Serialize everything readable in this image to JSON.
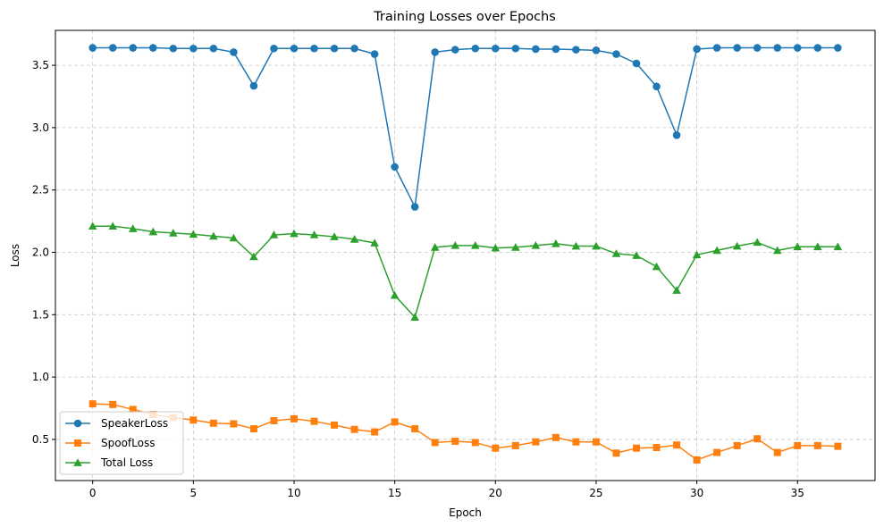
{
  "chart_data": {
    "type": "line",
    "title": "Training Losses over Epochs",
    "xlabel": "Epoch",
    "ylabel": "Loss",
    "xlim": [
      -1.85,
      38.85
    ],
    "ylim": [
      0.17,
      3.78
    ],
    "xticks": [
      0,
      5,
      10,
      15,
      20,
      25,
      30,
      35
    ],
    "xtick_labels": [
      "0",
      "5",
      "10",
      "15",
      "20",
      "25",
      "30",
      "35"
    ],
    "yticks": [
      0.5,
      1.0,
      1.5,
      2.0,
      2.5,
      3.0,
      3.5
    ],
    "ytick_labels": [
      "0.5",
      "1.0",
      "1.5",
      "2.0",
      "2.5",
      "3.0",
      "3.5"
    ],
    "grid": true,
    "legend_position": "lower-left",
    "x": [
      0,
      1,
      2,
      3,
      4,
      5,
      6,
      7,
      8,
      9,
      10,
      11,
      12,
      13,
      14,
      15,
      16,
      17,
      18,
      19,
      20,
      21,
      22,
      23,
      24,
      25,
      26,
      27,
      28,
      29,
      30,
      31,
      32,
      33,
      34,
      35,
      36,
      37
    ],
    "series": [
      {
        "name": "SpeakerLoss",
        "color": "#1f77b4",
        "marker": "circle",
        "values": [
          3.64,
          3.64,
          3.64,
          3.64,
          3.635,
          3.635,
          3.635,
          3.605,
          3.335,
          3.635,
          3.635,
          3.635,
          3.635,
          3.635,
          3.59,
          2.685,
          2.365,
          3.605,
          3.625,
          3.635,
          3.635,
          3.635,
          3.63,
          3.63,
          3.625,
          3.62,
          3.59,
          3.515,
          3.33,
          2.94,
          3.63,
          3.64,
          3.64,
          3.64,
          3.64,
          3.64,
          3.64,
          3.64
        ]
      },
      {
        "name": "SpoofLoss",
        "color": "#ff7f0e",
        "marker": "square",
        "values": [
          0.785,
          0.78,
          0.74,
          0.7,
          0.675,
          0.655,
          0.63,
          0.625,
          0.585,
          0.65,
          0.665,
          0.645,
          0.615,
          0.58,
          0.56,
          0.64,
          0.585,
          0.475,
          0.485,
          0.475,
          0.43,
          0.45,
          0.48,
          0.515,
          0.48,
          0.48,
          0.39,
          0.43,
          0.435,
          0.455,
          0.335,
          0.395,
          0.45,
          0.505,
          0.395,
          0.45,
          0.45,
          0.445
        ]
      },
      {
        "name": "Total Loss",
        "color": "#2ca02c",
        "marker": "triangle",
        "values": [
          2.21,
          2.21,
          2.19,
          2.165,
          2.155,
          2.145,
          2.13,
          2.115,
          1.965,
          2.14,
          2.15,
          2.14,
          2.125,
          2.105,
          2.075,
          1.655,
          1.48,
          2.04,
          2.055,
          2.055,
          2.035,
          2.04,
          2.055,
          2.07,
          2.05,
          2.05,
          1.99,
          1.975,
          1.885,
          1.695,
          1.98,
          2.015,
          2.05,
          2.08,
          2.015,
          2.045,
          2.045,
          2.045
        ]
      }
    ]
  }
}
